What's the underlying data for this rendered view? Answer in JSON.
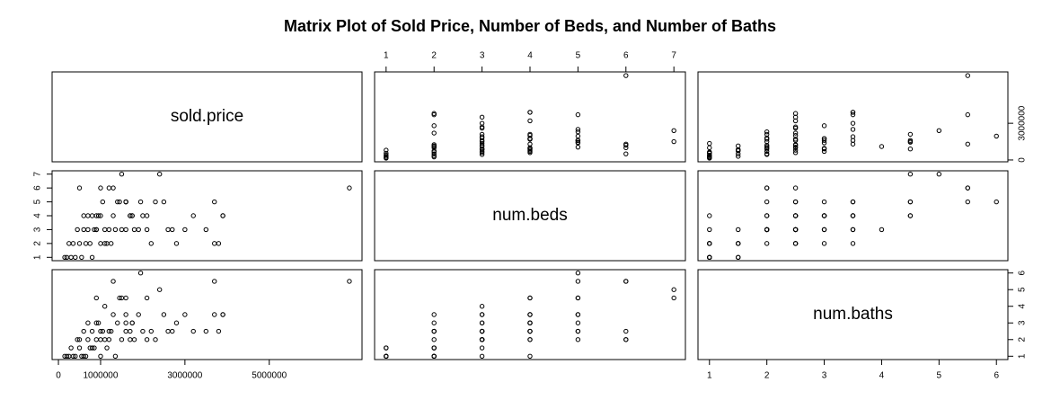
{
  "chart_data": {
    "type": "pairs",
    "title": "Matrix Plot of Sold Price, Number of Beds, and Number of Baths",
    "variables": [
      {
        "name": "sold.price",
        "lim": [
          -150000,
          7200000
        ],
        "xticks": [
          0,
          1000000,
          3000000,
          5000000
        ],
        "yticks": [
          0,
          3000000
        ],
        "values": [
          6900000,
          3700000,
          1950000,
          1100000,
          1500000,
          2400000,
          1600000,
          2100000,
          900000,
          1300000,
          1200000,
          1000000,
          3900000,
          3900000,
          3700000,
          3000000,
          2800000,
          2600000,
          3500000,
          3200000,
          2500000,
          2200000,
          1800000,
          1700000,
          1600000,
          1400000,
          1300000,
          1200000,
          1100000,
          1000000,
          900000,
          850000,
          800000,
          750000,
          700000,
          650000,
          600000,
          550000,
          500000,
          450000,
          400000,
          350000,
          300000,
          250000,
          200000,
          150000,
          1750000,
          1750000,
          1450000,
          950000,
          1050000,
          1150000,
          2000000,
          2300000,
          1900000,
          1350000,
          700000,
          1600000,
          600000,
          2700000,
          500000,
          1250000,
          900000,
          1500000,
          800000,
          1700000,
          2100000,
          1000000,
          3800000,
          1600000
        ]
      },
      {
        "name": "num.beds",
        "lim": [
          0.76,
          7.24
        ],
        "xticks": [
          1,
          2,
          3,
          4,
          5,
          6,
          7
        ],
        "yticks": [
          1,
          2,
          3,
          4,
          5,
          6,
          7
        ],
        "values": [
          6,
          5,
          5,
          3,
          7,
          7,
          5,
          4,
          4,
          6,
          6,
          6,
          4,
          4,
          2,
          3,
          2,
          3,
          3,
          4,
          5,
          2,
          3,
          4,
          3,
          5,
          4,
          3,
          2,
          4,
          3,
          3,
          4,
          2,
          3,
          2,
          3,
          1,
          2,
          3,
          1,
          2,
          1,
          2,
          1,
          1,
          4,
          4,
          5,
          4,
          5,
          2,
          4,
          5,
          3,
          3,
          4,
          5,
          4,
          3,
          6,
          2,
          3,
          3,
          1,
          4,
          3,
          2,
          2,
          5
        ]
      },
      {
        "name": "num.baths",
        "lim": [
          0.8,
          6.2
        ],
        "xticks": [
          1,
          2,
          3,
          4,
          5,
          6
        ],
        "yticks": [
          1,
          2,
          3,
          4,
          5,
          6
        ],
        "values": [
          5.5,
          5.5,
          6,
          4,
          4.5,
          5,
          4.5,
          4.5,
          4.5,
          5.5,
          2,
          2.5,
          3.5,
          3.5,
          3.5,
          3.5,
          3,
          2.5,
          2.5,
          2.5,
          3.5,
          2.5,
          2,
          2.5,
          3,
          3,
          3.5,
          2.5,
          2,
          2,
          2,
          1.5,
          2.5,
          1.5,
          2,
          1,
          2.5,
          1,
          1.5,
          2,
          1,
          1,
          1.5,
          1,
          1,
          1,
          3,
          3,
          4.5,
          3,
          2.5,
          1.5,
          2.5,
          2,
          3.5,
          1,
          3,
          3.5,
          1,
          2.5,
          2,
          2.5,
          3,
          2,
          1.5,
          2,
          2,
          1,
          2.5,
          2.5
        ]
      }
    ]
  }
}
